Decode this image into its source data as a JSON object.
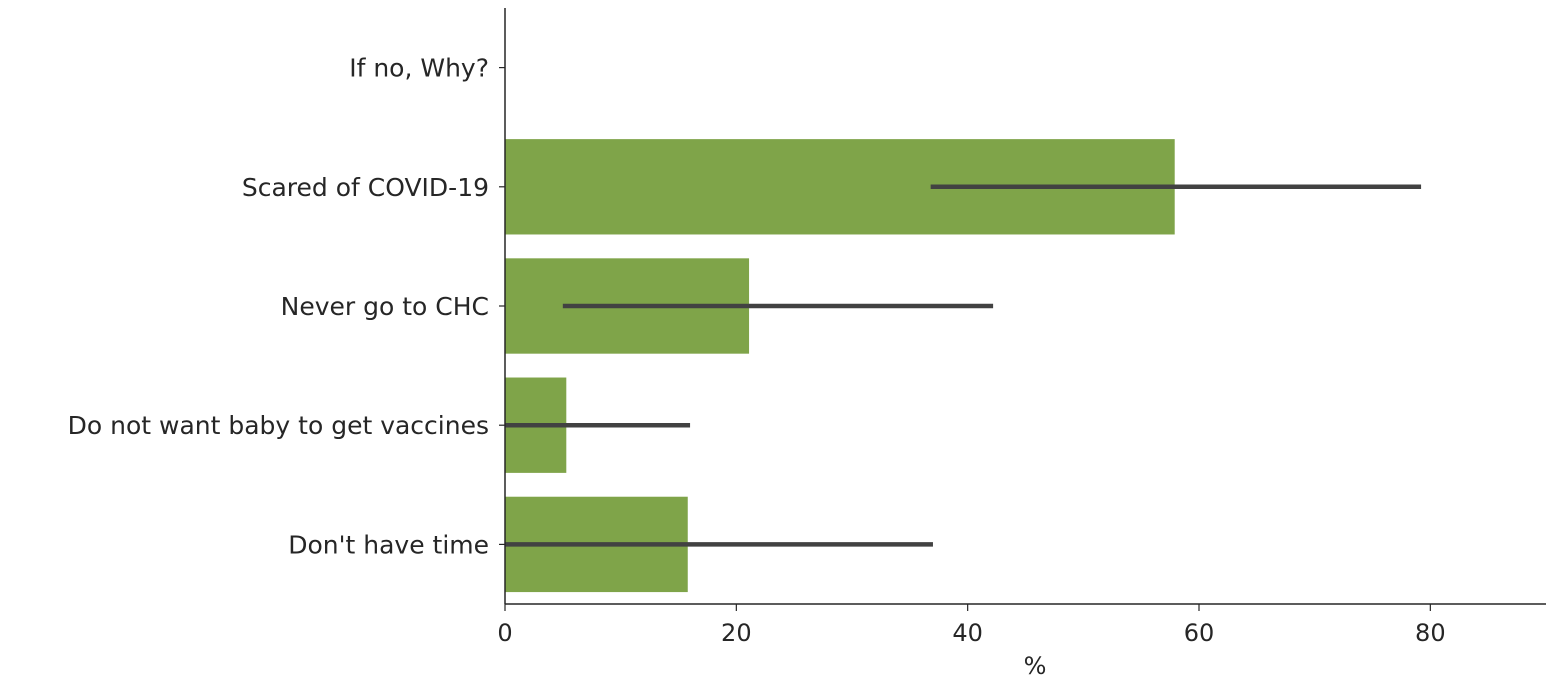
{
  "chart_data": {
    "type": "bar",
    "orientation": "horizontal",
    "title": "",
    "xlabel": "%",
    "ylabel": "",
    "xlim": [
      0,
      90
    ],
    "x_ticks": [
      0,
      20,
      40,
      60,
      80
    ],
    "x_tick_labels": [
      "0",
      "20",
      "40",
      "60",
      "80"
    ],
    "grid": false,
    "categories": [
      "If no, Why?",
      "Scared of COVID-19",
      "Never go to CHC",
      "Do not want baby to get vaccines",
      "Don't have time"
    ],
    "values": [
      null,
      57.9,
      21.1,
      5.3,
      15.8
    ],
    "error_low": [
      null,
      36.8,
      5.0,
      0,
      0
    ],
    "error_high": [
      null,
      79.2,
      42.2,
      16.0,
      37.0
    ],
    "bar_color": "#7fa449",
    "error_color": "#424242"
  }
}
